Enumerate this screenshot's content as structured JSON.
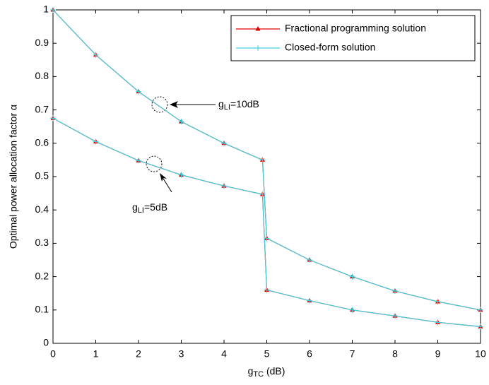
{
  "chart_data": {
    "type": "line",
    "x_label": {
      "text": "g",
      "sub": "TC",
      "rest": " (dB)"
    },
    "y_label": "Optimal power allocation factor α",
    "x": [
      0,
      1,
      2,
      3,
      4,
      4.9,
      5,
      6,
      7,
      8,
      9,
      10
    ],
    "series": [
      {
        "name": "Fractional programming solution",
        "color": "#e00000",
        "marker": "triangle",
        "curves": [
          [
            1,
            0.865,
            0.755,
            0.665,
            0.6,
            0.55,
            0.315,
            0.25,
            0.2,
            0.157,
            0.125,
            0.1
          ],
          [
            0.675,
            0.605,
            0.548,
            0.505,
            0.472,
            0.447,
            0.16,
            0.128,
            0.1,
            0.082,
            0.063,
            0.05
          ]
        ]
      },
      {
        "name": "Closed-form solution",
        "color": "#40d0e0",
        "marker": "plus",
        "curves": [
          [
            1,
            0.865,
            0.755,
            0.665,
            0.6,
            0.55,
            0.315,
            0.25,
            0.2,
            0.157,
            0.125,
            0.1
          ],
          [
            0.675,
            0.605,
            0.548,
            0.505,
            0.472,
            0.447,
            0.16,
            0.128,
            0.1,
            0.082,
            0.063,
            0.05
          ]
        ]
      }
    ],
    "annotations": [
      {
        "text": "g",
        "sub": "LI",
        "rest": "=10dB"
      },
      {
        "text": "g",
        "sub": "LI",
        "rest": "=5dB"
      }
    ],
    "xlim": [
      0,
      10
    ],
    "xticks": [
      0,
      1,
      2,
      3,
      4,
      5,
      6,
      7,
      8,
      9,
      10
    ],
    "ylim": [
      0,
      1
    ],
    "yticks": [
      0,
      0.1,
      0.2,
      0.3,
      0.4,
      0.5,
      0.6,
      0.7,
      0.8,
      0.9,
      1
    ],
    "grid": false,
    "legend": "upper right"
  }
}
